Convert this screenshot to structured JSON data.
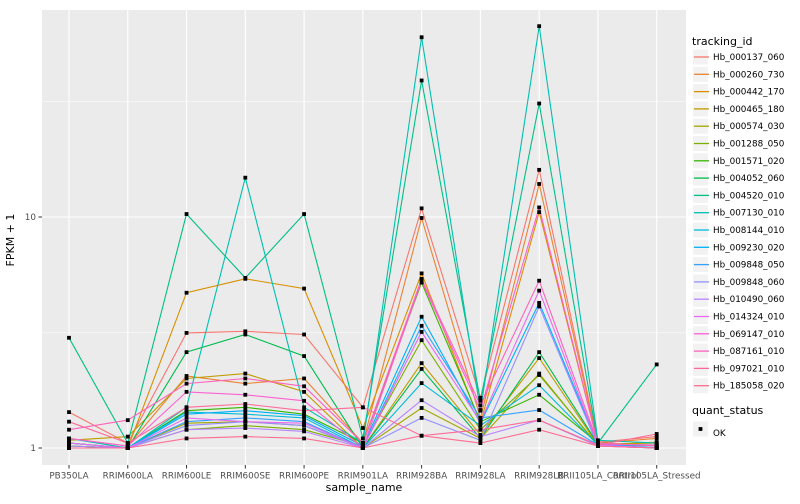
{
  "theme": {
    "page_bg": "#FFFFFF",
    "panel_bg": "#EBEBEB",
    "grid_color": "#FFFFFF",
    "axis_text_color": "#4D4D4D",
    "tick_color": "#333333",
    "text_color": "#000000",
    "legend_key_bg": "#F2F2F2",
    "point_color": "#000000"
  },
  "chart_data": {
    "type": "line",
    "title": "",
    "xlabel": "sample_name",
    "ylabel": "FPKM + 1",
    "y_scale": "log10",
    "y_ticks": [
      "1",
      "10"
    ],
    "ylim": [
      1,
      78
    ],
    "grid": true,
    "legend_position": "right",
    "legend_title": "tracking_id",
    "marker": "black-square",
    "x_categories": [
      "PB350LA",
      "RRIM600LA",
      "RRIM600LE",
      "RRIM600SE",
      "RRIM600PE",
      "RRIM901LA",
      "RRIM928BA",
      "RRIM928LA",
      "RRIM928LB",
      "RRII105LA_Control",
      "RRII105LA_Stressed"
    ],
    "series": [
      {
        "name": "Hb_000137_060",
        "color": "#F8766D",
        "values": [
          1.43,
          1.05,
          3.15,
          3.2,
          3.1,
          1.5,
          10.9,
          1.65,
          16.0,
          1.06,
          1.12
        ]
      },
      {
        "name": "Hb_000260_730",
        "color": "#EA8331",
        "values": [
          1.1,
          1.02,
          2.05,
          1.9,
          2.0,
          1.05,
          9.9,
          1.35,
          13.9,
          1.05,
          1.1
        ]
      },
      {
        "name": "Hb_000442_170",
        "color": "#D89000",
        "values": [
          1.05,
          1.0,
          4.7,
          5.4,
          4.9,
          1.22,
          5.7,
          1.28,
          10.5,
          1.04,
          1.05
        ]
      },
      {
        "name": "Hb_000465_180",
        "color": "#C09B00",
        "values": [
          1.08,
          1.12,
          2.0,
          2.1,
          1.75,
          1.0,
          2.33,
          1.14,
          2.45,
          1.03,
          1.06
        ]
      },
      {
        "name": "Hb_000574_030",
        "color": "#A3A500",
        "values": [
          1.02,
          1.0,
          1.28,
          1.3,
          1.25,
          1.0,
          1.49,
          1.1,
          2.1,
          1.02,
          1.0
        ]
      },
      {
        "name": "Hb_001288_050",
        "color": "#7CAE00",
        "values": [
          1.0,
          1.0,
          1.2,
          1.25,
          1.2,
          1.02,
          2.93,
          1.2,
          2.07,
          1.03,
          1.0
        ]
      },
      {
        "name": "Hb_001571_020",
        "color": "#39B600",
        "values": [
          1.05,
          1.0,
          1.45,
          1.5,
          1.4,
          1.05,
          5.2,
          1.3,
          1.7,
          1.05,
          1.02
        ]
      },
      {
        "name": "Hb_004052_060",
        "color": "#00BB4E",
        "values": [
          1.02,
          1.0,
          2.6,
          3.1,
          2.5,
          1.0,
          2.2,
          1.1,
          2.6,
          1.04,
          1.03
        ]
      },
      {
        "name": "Hb_004520_010",
        "color": "#00C087",
        "values": [
          3.0,
          1.05,
          10.3,
          5.45,
          10.3,
          1.1,
          39.0,
          1.6,
          31.0,
          1.05,
          2.3
        ]
      },
      {
        "name": "Hb_007130_010",
        "color": "#00C0AF",
        "values": [
          1.1,
          1.0,
          1.5,
          14.8,
          1.5,
          1.05,
          60.0,
          1.45,
          67.0,
          1.08,
          1.05
        ]
      },
      {
        "name": "Hb_008144_010",
        "color": "#00BCD8",
        "values": [
          1.0,
          1.0,
          1.43,
          1.4,
          1.35,
          1.0,
          1.91,
          1.25,
          1.87,
          1.03,
          1.02
        ]
      },
      {
        "name": "Hb_009230_020",
        "color": "#00B0F6",
        "values": [
          1.0,
          1.0,
          1.4,
          1.45,
          1.38,
          1.02,
          3.7,
          1.28,
          4.25,
          1.04,
          1.0
        ]
      },
      {
        "name": "Hb_009848_050",
        "color": "#35A2FF",
        "values": [
          1.05,
          1.0,
          1.3,
          1.35,
          1.3,
          1.0,
          3.38,
          1.35,
          1.46,
          1.03,
          1.0
        ]
      },
      {
        "name": "Hb_009848_060",
        "color": "#9590FF",
        "values": [
          1.0,
          1.0,
          1.25,
          1.3,
          1.25,
          1.0,
          1.35,
          1.08,
          4.1,
          1.02,
          1.0
        ]
      },
      {
        "name": "Hb_010490_060",
        "color": "#B983FF",
        "values": [
          1.02,
          1.0,
          1.2,
          1.22,
          1.18,
          1.0,
          1.61,
          1.12,
          1.32,
          1.02,
          1.0
        ]
      },
      {
        "name": "Hb_014324_010",
        "color": "#E76BF3",
        "values": [
          1.05,
          1.0,
          1.35,
          1.3,
          1.28,
          1.0,
          3.18,
          1.3,
          4.8,
          1.03,
          1.0
        ]
      },
      {
        "name": "Hb_069147_010",
        "color": "#FD61D1",
        "values": [
          1.1,
          1.02,
          1.75,
          1.7,
          1.6,
          1.0,
          5.3,
          1.46,
          11.0,
          1.04,
          1.03
        ]
      },
      {
        "name": "Hb_087161_010",
        "color": "#FF62BC",
        "values": [
          1.2,
          1.32,
          1.9,
          2.0,
          1.85,
          1.05,
          5.4,
          1.53,
          5.3,
          1.05,
          1.02
        ]
      },
      {
        "name": "Hb_097021_010",
        "color": "#FF6A98",
        "values": [
          1.3,
          1.05,
          1.5,
          1.55,
          1.45,
          1.5,
          1.13,
          1.2,
          1.32,
          1.03,
          1.15
        ]
      },
      {
        "name": "Hb_185058_020",
        "color": "#FF6C91",
        "values": [
          1.0,
          1.0,
          1.1,
          1.12,
          1.1,
          1.0,
          1.13,
          1.05,
          1.2,
          1.02,
          1.0
        ]
      }
    ],
    "secondary_legend": {
      "title": "quant_status",
      "items": [
        {
          "label": "OK",
          "marker": "square",
          "color": "#000000"
        }
      ]
    }
  }
}
